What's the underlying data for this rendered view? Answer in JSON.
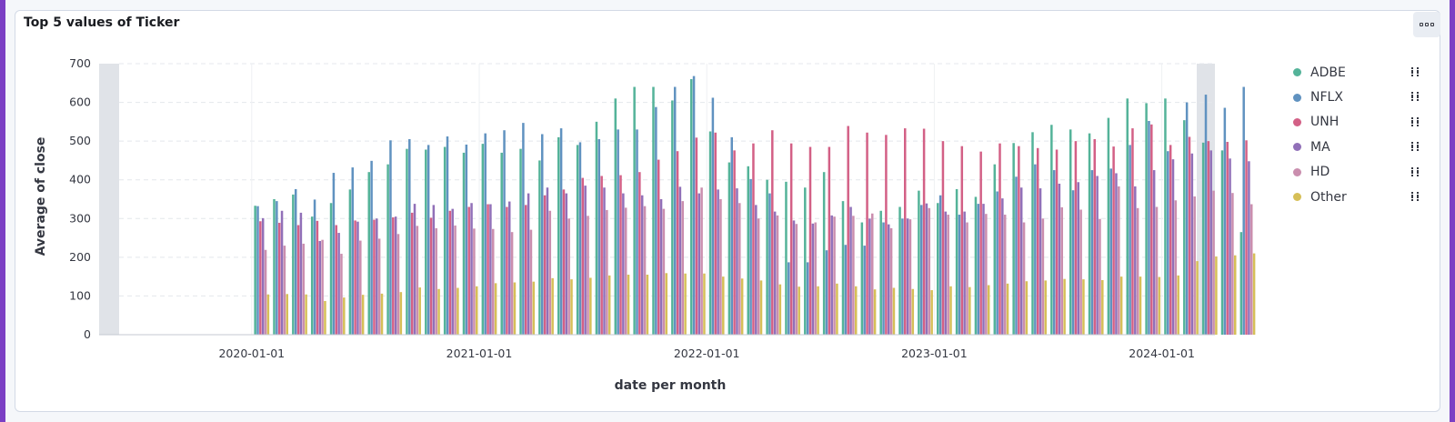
{
  "panel": {
    "title": "Top 5 values of Ticker",
    "menu_icon": "horizontal-dots-icon"
  },
  "legend": {
    "items": [
      {
        "label": "ADBE",
        "color": "#54b399"
      },
      {
        "label": "NFLX",
        "color": "#6092c0"
      },
      {
        "label": "UNH",
        "color": "#d36086"
      },
      {
        "label": "MA",
        "color": "#9170b8"
      },
      {
        "label": "HD",
        "color": "#ca8eae"
      },
      {
        "label": "Other",
        "color": "#d6bf57"
      }
    ]
  },
  "chart_data": {
    "type": "bar",
    "title": "Top 5 values of Ticker",
    "xlabel": "date per month",
    "ylabel": "Average of close",
    "ylim": [
      0,
      700
    ],
    "yticks": [
      0,
      100,
      200,
      300,
      400,
      500,
      600,
      700
    ],
    "xticks": [
      "2020-01-01",
      "2021-01-01",
      "2022-01-01",
      "2023-01-01",
      "2024-01-01"
    ],
    "grid": true,
    "legend_position": "right",
    "categories": [
      "2020-01",
      "2020-02",
      "2020-03",
      "2020-04",
      "2020-05",
      "2020-06",
      "2020-07",
      "2020-08",
      "2020-09",
      "2020-10",
      "2020-11",
      "2020-12",
      "2021-01",
      "2021-02",
      "2021-03",
      "2021-04",
      "2021-05",
      "2021-06",
      "2021-07",
      "2021-08",
      "2021-09",
      "2021-10",
      "2021-11",
      "2021-12",
      "2022-01",
      "2022-02",
      "2022-03",
      "2022-04",
      "2022-05",
      "2022-06",
      "2022-07",
      "2022-08",
      "2022-09",
      "2022-10",
      "2022-11",
      "2022-12",
      "2023-01",
      "2023-02",
      "2023-03",
      "2023-04",
      "2023-05",
      "2023-06",
      "2023-07",
      "2023-08",
      "2023-09",
      "2023-10",
      "2023-11",
      "2023-12",
      "2024-01",
      "2024-02",
      "2024-03",
      "2024-04",
      "2024-05"
    ],
    "series": [
      {
        "name": "ADBE",
        "values": [
          333,
          350,
          362,
          305,
          340,
          375,
          420,
          440,
          480,
          478,
          485,
          470,
          493,
          470,
          480,
          450,
          510,
          490,
          550,
          610,
          640,
          640,
          605,
          660,
          525,
          445,
          435,
          400,
          395,
          380,
          420,
          345,
          290,
          320,
          330,
          372,
          340,
          376,
          356,
          440,
          495,
          523,
          542,
          530,
          520,
          560,
          610,
          598,
          610,
          554,
          496,
          476,
          265
        ]
      },
      {
        "name": "NFLX",
        "values": [
          332,
          345,
          376,
          349,
          418,
          432,
          449,
          502,
          505,
          490,
          512,
          491,
          520,
          528,
          547,
          518,
          533,
          497,
          505,
          530,
          530,
          588,
          640,
          668,
          612,
          510,
          402,
          365,
          187,
          187,
          218,
          232,
          230,
          290,
          300,
          335,
          360,
          310,
          338,
          370,
          408,
          440,
          425,
          373,
          425,
          429,
          490,
          552,
          474,
          600,
          620,
          586,
          640
        ]
      },
      {
        "name": "UNH",
        "values": [
          293,
          289,
          283,
          294,
          283,
          295,
          297,
          303,
          315,
          302,
          320,
          330,
          337,
          330,
          335,
          360,
          375,
          405,
          410,
          412,
          420,
          452,
          474,
          509,
          522,
          476,
          494,
          528,
          494,
          485,
          485,
          539,
          522,
          516,
          533,
          532,
          500,
          487,
          473,
          494,
          487,
          482,
          478,
          500,
          505,
          486,
          533,
          543,
          490,
          511,
          500,
          498,
          502
        ]
      },
      {
        "name": "MA",
        "values": [
          301,
          320,
          315,
          242,
          263,
          292,
          300,
          305,
          338,
          335,
          325,
          340,
          337,
          344,
          365,
          380,
          365,
          385,
          380,
          365,
          360,
          350,
          382,
          365,
          375,
          378,
          335,
          318,
          295,
          287,
          308,
          330,
          300,
          285,
          300,
          339,
          318,
          318,
          338,
          352,
          380,
          378,
          390,
          394,
          410,
          417,
          383,
          425,
          453,
          468,
          476,
          455,
          448
        ]
      },
      {
        "name": "HD",
        "values": [
          219,
          230,
          235,
          245,
          209,
          243,
          248,
          260,
          281,
          275,
          282,
          274,
          273,
          265,
          271,
          320,
          300,
          307,
          322,
          328,
          332,
          325,
          345,
          380,
          350,
          340,
          300,
          308,
          286,
          290,
          305,
          307,
          313,
          275,
          298,
          327,
          310,
          290,
          312,
          310,
          290,
          300,
          329,
          323,
          299,
          383,
          327,
          330,
          347,
          357,
          372,
          366,
          337
        ]
      },
      {
        "name": "Other",
        "values": [
          104,
          105,
          104,
          87,
          96,
          103,
          106,
          110,
          122,
          118,
          121,
          125,
          133,
          135,
          137,
          146,
          143,
          147,
          153,
          155,
          155,
          159,
          158,
          158,
          150,
          145,
          140,
          130,
          124,
          125,
          132,
          125,
          117,
          121,
          118,
          115,
          125,
          123,
          128,
          132,
          138,
          140,
          144,
          143,
          141,
          150,
          150,
          149,
          153,
          190,
          202,
          205,
          210
        ]
      }
    ]
  }
}
